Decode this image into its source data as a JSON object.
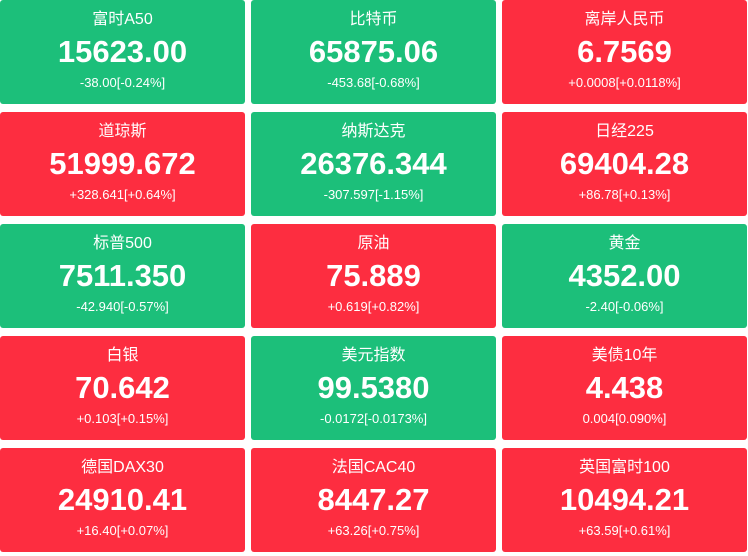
{
  "tiles": [
    {
      "name": "富时A50",
      "price": "15623.00",
      "change": "-38.00[-0.24%]",
      "color": "#1cbf7a"
    },
    {
      "name": "比特币",
      "price": "65875.06",
      "change": "-453.68[-0.68%]",
      "color": "#1cbf7a"
    },
    {
      "name": "离岸人民币",
      "price": "6.7569",
      "change": "+0.0008[+0.0118%]",
      "color": "#fd2d40"
    },
    {
      "name": "道琼斯",
      "price": "51999.672",
      "change": "+328.641[+0.64%]",
      "color": "#fd2d40"
    },
    {
      "name": "纳斯达克",
      "price": "26376.344",
      "change": "-307.597[-1.15%]",
      "color": "#1cbf7a"
    },
    {
      "name": "日经225",
      "price": "69404.28",
      "change": "+86.78[+0.13%]",
      "color": "#fd2d40"
    },
    {
      "name": "标普500",
      "price": "7511.350",
      "change": "-42.940[-0.57%]",
      "color": "#1cbf7a"
    },
    {
      "name": "原油",
      "price": "75.889",
      "change": "+0.619[+0.82%]",
      "color": "#fd2d40"
    },
    {
      "name": "黄金",
      "price": "4352.00",
      "change": "-2.40[-0.06%]",
      "color": "#1cbf7a"
    },
    {
      "name": "白银",
      "price": "70.642",
      "change": "+0.103[+0.15%]",
      "color": "#fd2d40"
    },
    {
      "name": "美元指数",
      "price": "99.5380",
      "change": "-0.0172[-0.0173%]",
      "color": "#1cbf7a"
    },
    {
      "name": "美债10年",
      "price": "4.438",
      "change": "0.004[0.090%]",
      "color": "#fd2d40"
    },
    {
      "name": "德国DAX30",
      "price": "24910.41",
      "change": "+16.40[+0.07%]",
      "color": "#fd2d40"
    },
    {
      "name": "法国CAC40",
      "price": "8447.27",
      "change": "+63.26[+0.75%]",
      "color": "#fd2d40"
    },
    {
      "name": "英国富时100",
      "price": "10494.21",
      "change": "+63.59[+0.61%]",
      "color": "#fd2d40"
    }
  ]
}
